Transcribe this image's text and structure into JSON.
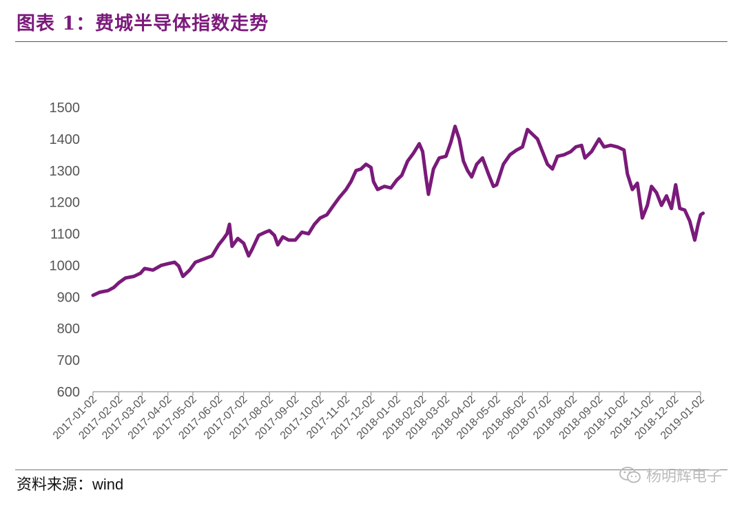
{
  "header": {
    "title": "图表 1：费城半导体指数走势"
  },
  "footer": {
    "source_label": "资料来源：",
    "source_value": "wind"
  },
  "watermark": {
    "text": "杨明辉电子",
    "icon": "wechat-icon"
  },
  "colors": {
    "accent": "#7b1a7b",
    "line": "#7a1a7a",
    "axis": "#999999",
    "tick_text": "#555555"
  },
  "chart_data": {
    "type": "line",
    "title": "",
    "xlabel": "",
    "ylabel": "",
    "ylim": [
      600,
      1500
    ],
    "yticks": [
      600,
      700,
      800,
      900,
      1000,
      1100,
      1200,
      1300,
      1400,
      1500
    ],
    "grid": false,
    "legend": "none",
    "xticks": [
      "2017-01-02",
      "2017-02-02",
      "2017-03-02",
      "2017-04-02",
      "2017-05-02",
      "2017-06-02",
      "2017-07-02",
      "2017-08-02",
      "2017-09-02",
      "2017-10-02",
      "2017-11-02",
      "2017-12-02",
      "2018-01-02",
      "2018-02-02",
      "2018-03-02",
      "2018-04-02",
      "2018-05-02",
      "2018-06-02",
      "2018-07-02",
      "2018-08-02",
      "2018-09-02",
      "2018-10-02",
      "2018-11-02",
      "2018-12-02",
      "2019-01-02"
    ],
    "series": [
      {
        "values": [
          [
            "2017-01-02",
            905
          ],
          [
            "2017-01-10",
            915
          ],
          [
            "2017-01-20",
            920
          ],
          [
            "2017-01-27",
            930
          ],
          [
            "2017-02-02",
            945
          ],
          [
            "2017-02-10",
            960
          ],
          [
            "2017-02-20",
            965
          ],
          [
            "2017-02-28",
            975
          ],
          [
            "2017-03-05",
            990
          ],
          [
            "2017-03-15",
            985
          ],
          [
            "2017-03-25",
            1000
          ],
          [
            "2017-04-02",
            1005
          ],
          [
            "2017-04-10",
            1010
          ],
          [
            "2017-04-15",
            998
          ],
          [
            "2017-04-20",
            965
          ],
          [
            "2017-04-28",
            985
          ],
          [
            "2017-05-05",
            1010
          ],
          [
            "2017-05-15",
            1020
          ],
          [
            "2017-05-25",
            1030
          ],
          [
            "2017-06-02",
            1065
          ],
          [
            "2017-06-08",
            1085
          ],
          [
            "2017-06-12",
            1100
          ],
          [
            "2017-06-15",
            1130
          ],
          [
            "2017-06-18",
            1060
          ],
          [
            "2017-06-25",
            1085
          ],
          [
            "2017-07-02",
            1070
          ],
          [
            "2017-07-08",
            1030
          ],
          [
            "2017-07-12",
            1050
          ],
          [
            "2017-07-20",
            1095
          ],
          [
            "2017-07-28",
            1105
          ],
          [
            "2017-08-02",
            1110
          ],
          [
            "2017-08-08",
            1095
          ],
          [
            "2017-08-12",
            1065
          ],
          [
            "2017-08-18",
            1090
          ],
          [
            "2017-08-25",
            1080
          ],
          [
            "2017-09-02",
            1080
          ],
          [
            "2017-09-10",
            1105
          ],
          [
            "2017-09-18",
            1100
          ],
          [
            "2017-09-25",
            1130
          ],
          [
            "2017-10-02",
            1150
          ],
          [
            "2017-10-10",
            1160
          ],
          [
            "2017-10-18",
            1190
          ],
          [
            "2017-10-25",
            1215
          ],
          [
            "2017-11-02",
            1240
          ],
          [
            "2017-11-08",
            1265
          ],
          [
            "2017-11-14",
            1300
          ],
          [
            "2017-11-20",
            1305
          ],
          [
            "2017-11-26",
            1320
          ],
          [
            "2017-12-02",
            1310
          ],
          [
            "2017-12-05",
            1265
          ],
          [
            "2017-12-10",
            1240
          ],
          [
            "2017-12-18",
            1250
          ],
          [
            "2017-12-26",
            1245
          ],
          [
            "2018-01-02",
            1270
          ],
          [
            "2018-01-08",
            1285
          ],
          [
            "2018-01-15",
            1330
          ],
          [
            "2018-01-22",
            1355
          ],
          [
            "2018-01-29",
            1385
          ],
          [
            "2018-02-02",
            1360
          ],
          [
            "2018-02-06",
            1280
          ],
          [
            "2018-02-09",
            1225
          ],
          [
            "2018-02-15",
            1305
          ],
          [
            "2018-02-22",
            1340
          ],
          [
            "2018-03-02",
            1345
          ],
          [
            "2018-03-08",
            1390
          ],
          [
            "2018-03-13",
            1440
          ],
          [
            "2018-03-18",
            1400
          ],
          [
            "2018-03-23",
            1330
          ],
          [
            "2018-03-28",
            1300
          ],
          [
            "2018-04-02",
            1280
          ],
          [
            "2018-04-08",
            1320
          ],
          [
            "2018-04-15",
            1340
          ],
          [
            "2018-04-22",
            1290
          ],
          [
            "2018-04-28",
            1250
          ],
          [
            "2018-05-02",
            1255
          ],
          [
            "2018-05-10",
            1320
          ],
          [
            "2018-05-18",
            1350
          ],
          [
            "2018-05-26",
            1365
          ],
          [
            "2018-06-02",
            1375
          ],
          [
            "2018-06-08",
            1430
          ],
          [
            "2018-06-14",
            1415
          ],
          [
            "2018-06-20",
            1400
          ],
          [
            "2018-06-26",
            1360
          ],
          [
            "2018-07-02",
            1320
          ],
          [
            "2018-07-08",
            1305
          ],
          [
            "2018-07-14",
            1345
          ],
          [
            "2018-07-22",
            1350
          ],
          [
            "2018-07-30",
            1360
          ],
          [
            "2018-08-05",
            1375
          ],
          [
            "2018-08-12",
            1380
          ],
          [
            "2018-08-16",
            1340
          ],
          [
            "2018-08-24",
            1360
          ],
          [
            "2018-09-02",
            1400
          ],
          [
            "2018-09-08",
            1375
          ],
          [
            "2018-09-16",
            1380
          ],
          [
            "2018-09-24",
            1375
          ],
          [
            "2018-10-02",
            1365
          ],
          [
            "2018-10-06",
            1290
          ],
          [
            "2018-10-12",
            1240
          ],
          [
            "2018-10-18",
            1260
          ],
          [
            "2018-10-24",
            1150
          ],
          [
            "2018-10-30",
            1190
          ],
          [
            "2018-11-04",
            1250
          ],
          [
            "2018-11-10",
            1230
          ],
          [
            "2018-11-16",
            1190
          ],
          [
            "2018-11-22",
            1220
          ],
          [
            "2018-11-28",
            1180
          ],
          [
            "2018-12-03",
            1255
          ],
          [
            "2018-12-08",
            1180
          ],
          [
            "2018-12-14",
            1175
          ],
          [
            "2018-12-20",
            1140
          ],
          [
            "2018-12-26",
            1080
          ],
          [
            "2018-12-30",
            1130
          ],
          [
            "2019-01-02",
            1160
          ],
          [
            "2019-01-05",
            1165
          ]
        ]
      }
    ]
  }
}
